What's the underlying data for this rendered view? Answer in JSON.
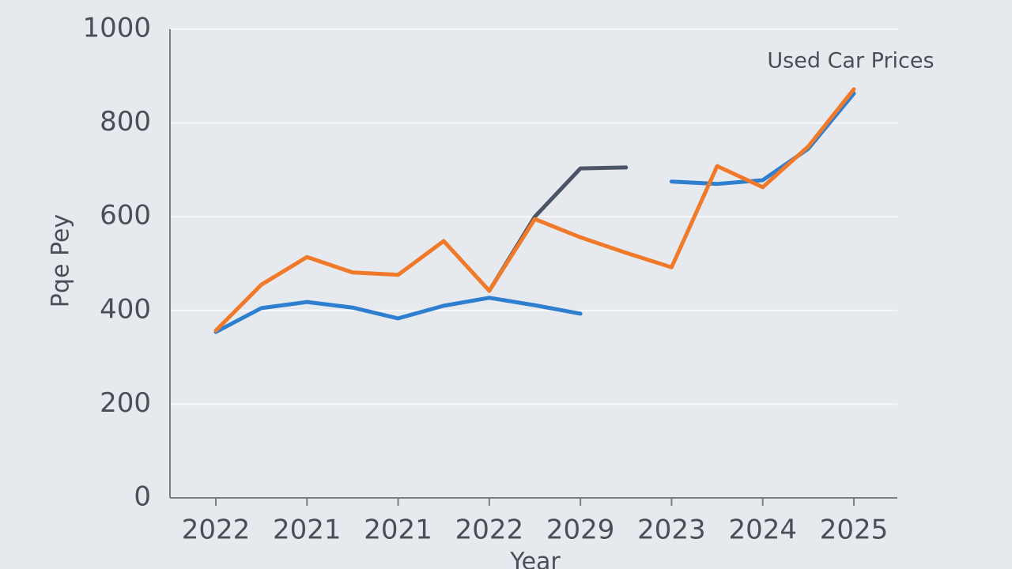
{
  "chart_data": {
    "type": "line",
    "title": "Used Car Prices",
    "x_label": "Year",
    "y_label": "Pqe Pey",
    "categories": [
      "2022",
      null,
      "2021",
      null,
      "2021",
      null,
      "2022",
      null,
      "2029",
      null,
      "2023",
      null,
      "2024",
      null,
      "2025"
    ],
    "series": [
      {
        "color": "#2f7fd0",
        "values": [
          354,
          405,
          418,
          406,
          383,
          410,
          427,
          411,
          393,
          null,
          675,
          670,
          678,
          745,
          863
        ]
      },
      {
        "color": "#4b5566",
        "values": [
          null,
          null,
          null,
          null,
          null,
          null,
          442,
          600,
          703,
          705,
          null,
          null,
          null,
          null,
          null
        ]
      },
      {
        "color": "#f07a2a",
        "values": [
          357,
          455,
          514,
          481,
          476,
          548,
          442,
          595,
          556,
          523,
          492,
          708,
          663,
          750,
          872
        ]
      }
    ],
    "ylim": [
      0,
      1000
    ],
    "yticks": [
      0,
      200,
      400,
      600,
      800,
      1000
    ],
    "grid": true
  }
}
